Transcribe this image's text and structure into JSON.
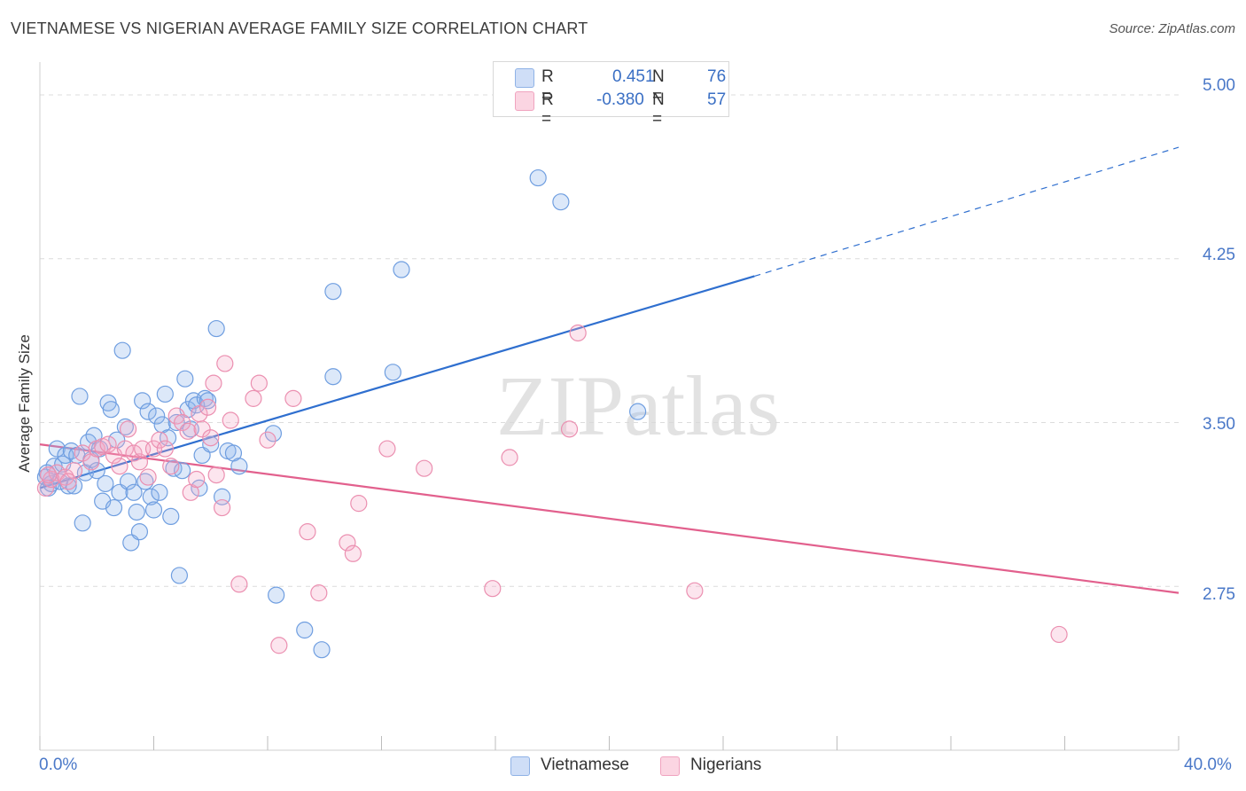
{
  "title": "VIETNAMESE VS NIGERIAN AVERAGE FAMILY SIZE CORRELATION CHART",
  "source": "Source: ZipAtlas.com",
  "watermark": "ZIPatlas",
  "stats": [
    {
      "r_label": "R =",
      "r_value": "0.451",
      "n_label": "N =",
      "n_value": "76",
      "color": "#a8c4f0"
    },
    {
      "r_label": "R =",
      "r_value": "-0.380",
      "n_label": "N =",
      "n_value": "57",
      "color": "#f6b8cc"
    }
  ],
  "legend": [
    {
      "label": "Vietnamese",
      "color": "#a8c4f0"
    },
    {
      "label": "Nigerians",
      "color": "#f6b8cc"
    }
  ],
  "colors": {
    "vietnamese_stroke": "#6f9ee0",
    "vietnamese_fill": "rgba(140,180,235,0.30)",
    "vietnamese_line": "#2f6fcf",
    "nigerian_stroke": "#eb8fb0",
    "nigerian_fill": "rgba(245,170,200,0.30)",
    "nigerian_line": "#e2608d",
    "grid": "#dcdcdc",
    "tick_text": "#4a78c8"
  },
  "chart_data": {
    "type": "scatter",
    "title": "VIETNAMESE VS NIGERIAN AVERAGE FAMILY SIZE CORRELATION CHART",
    "xlabel": "",
    "ylabel": "Average Family Size",
    "xlim": [
      0,
      40
    ],
    "ylim": [
      2.0,
      5.15
    ],
    "x_tick_labels": [
      "0.0%",
      "40.0%"
    ],
    "y_ticks": [
      2.75,
      3.5,
      4.25,
      5.0
    ],
    "y_tick_labels": [
      "2.75",
      "3.50",
      "4.25",
      "5.00"
    ],
    "grid": true,
    "legend_position": "bottom-center",
    "series": [
      {
        "name": "Vietnamese",
        "trend": {
          "x_start": 0,
          "y_start": 3.2,
          "x_end": 25.1,
          "y_end": 4.17,
          "dashed_to_x": 40,
          "dashed_to_y": 4.76
        },
        "points": [
          [
            0.2,
            3.25
          ],
          [
            0.3,
            3.2
          ],
          [
            0.4,
            3.22
          ],
          [
            0.5,
            3.3
          ],
          [
            0.6,
            3.38
          ],
          [
            0.7,
            3.23
          ],
          [
            0.8,
            3.31
          ],
          [
            0.9,
            3.35
          ],
          [
            1.0,
            3.21
          ],
          [
            1.1,
            3.37
          ],
          [
            1.2,
            3.21
          ],
          [
            1.3,
            3.35
          ],
          [
            1.4,
            3.62
          ],
          [
            1.5,
            3.04
          ],
          [
            1.6,
            3.27
          ],
          [
            1.7,
            3.41
          ],
          [
            1.8,
            3.33
          ],
          [
            1.9,
            3.44
          ],
          [
            2.0,
            3.28
          ],
          [
            2.1,
            3.38
          ],
          [
            2.2,
            3.14
          ],
          [
            2.3,
            3.22
          ],
          [
            2.4,
            3.59
          ],
          [
            2.5,
            3.56
          ],
          [
            2.6,
            3.11
          ],
          [
            2.7,
            3.42
          ],
          [
            2.8,
            3.18
          ],
          [
            2.9,
            3.83
          ],
          [
            3.0,
            3.48
          ],
          [
            3.1,
            3.23
          ],
          [
            3.2,
            2.95
          ],
          [
            3.3,
            3.18
          ],
          [
            3.4,
            3.09
          ],
          [
            3.5,
            3.0
          ],
          [
            3.6,
            3.6
          ],
          [
            3.7,
            3.23
          ],
          [
            3.8,
            3.55
          ],
          [
            3.9,
            3.16
          ],
          [
            4.0,
            3.1
          ],
          [
            4.1,
            3.53
          ],
          [
            4.2,
            3.18
          ],
          [
            4.3,
            3.49
          ],
          [
            4.4,
            3.63
          ],
          [
            4.5,
            3.43
          ],
          [
            4.6,
            3.07
          ],
          [
            4.7,
            3.29
          ],
          [
            4.8,
            3.5
          ],
          [
            4.9,
            2.8
          ],
          [
            5.0,
            3.28
          ],
          [
            5.1,
            3.7
          ],
          [
            5.2,
            3.56
          ],
          [
            5.3,
            3.47
          ],
          [
            5.4,
            3.6
          ],
          [
            5.5,
            3.58
          ],
          [
            5.6,
            3.2
          ],
          [
            5.7,
            3.35
          ],
          [
            5.8,
            3.61
          ],
          [
            5.9,
            3.6
          ],
          [
            6.0,
            3.4
          ],
          [
            6.2,
            3.93
          ],
          [
            6.4,
            3.16
          ],
          [
            6.6,
            3.37
          ],
          [
            6.8,
            3.36
          ],
          [
            7.0,
            3.3
          ],
          [
            8.2,
            3.45
          ],
          [
            8.3,
            2.71
          ],
          [
            9.3,
            2.55
          ],
          [
            9.9,
            2.46
          ],
          [
            10.3,
            4.1
          ],
          [
            10.3,
            3.71
          ],
          [
            12.4,
            3.73
          ],
          [
            12.7,
            4.2
          ],
          [
            17.5,
            4.62
          ],
          [
            18.3,
            4.51
          ],
          [
            21.0,
            3.55
          ],
          [
            0.25,
            3.27
          ]
        ]
      },
      {
        "name": "Nigerians",
        "trend": {
          "x_start": 0,
          "y_start": 3.4,
          "x_end": 40,
          "y_end": 2.72
        },
        "points": [
          [
            0.2,
            3.2
          ],
          [
            0.4,
            3.24
          ],
          [
            0.6,
            3.27
          ],
          [
            0.9,
            3.25
          ],
          [
            1.2,
            3.28
          ],
          [
            1.5,
            3.36
          ],
          [
            1.8,
            3.32
          ],
          [
            2.0,
            3.38
          ],
          [
            2.2,
            3.39
          ],
          [
            2.4,
            3.4
          ],
          [
            2.6,
            3.35
          ],
          [
            2.8,
            3.3
          ],
          [
            3.0,
            3.38
          ],
          [
            3.1,
            3.47
          ],
          [
            3.3,
            3.36
          ],
          [
            3.5,
            3.32
          ],
          [
            3.6,
            3.38
          ],
          [
            3.8,
            3.25
          ],
          [
            4.0,
            3.38
          ],
          [
            4.2,
            3.42
          ],
          [
            4.4,
            3.38
          ],
          [
            4.6,
            3.3
          ],
          [
            4.8,
            3.53
          ],
          [
            5.0,
            3.5
          ],
          [
            5.2,
            3.46
          ],
          [
            5.3,
            3.18
          ],
          [
            5.5,
            3.24
          ],
          [
            5.6,
            3.54
          ],
          [
            5.7,
            3.47
          ],
          [
            5.9,
            3.57
          ],
          [
            6.0,
            3.43
          ],
          [
            6.1,
            3.68
          ],
          [
            6.2,
            3.26
          ],
          [
            6.4,
            3.11
          ],
          [
            6.5,
            3.77
          ],
          [
            6.7,
            3.51
          ],
          [
            7.0,
            2.76
          ],
          [
            7.5,
            3.61
          ],
          [
            7.7,
            3.68
          ],
          [
            8.0,
            3.42
          ],
          [
            8.4,
            2.48
          ],
          [
            8.9,
            3.61
          ],
          [
            9.4,
            3.0
          ],
          [
            9.8,
            2.72
          ],
          [
            10.8,
            2.95
          ],
          [
            11.0,
            2.9
          ],
          [
            11.2,
            3.13
          ],
          [
            12.2,
            3.38
          ],
          [
            13.5,
            3.29
          ],
          [
            15.9,
            2.74
          ],
          [
            16.5,
            3.34
          ],
          [
            18.6,
            3.47
          ],
          [
            18.9,
            3.91
          ],
          [
            23.0,
            2.73
          ],
          [
            35.8,
            2.53
          ],
          [
            1.0,
            3.23
          ],
          [
            0.3,
            3.26
          ]
        ]
      }
    ]
  }
}
